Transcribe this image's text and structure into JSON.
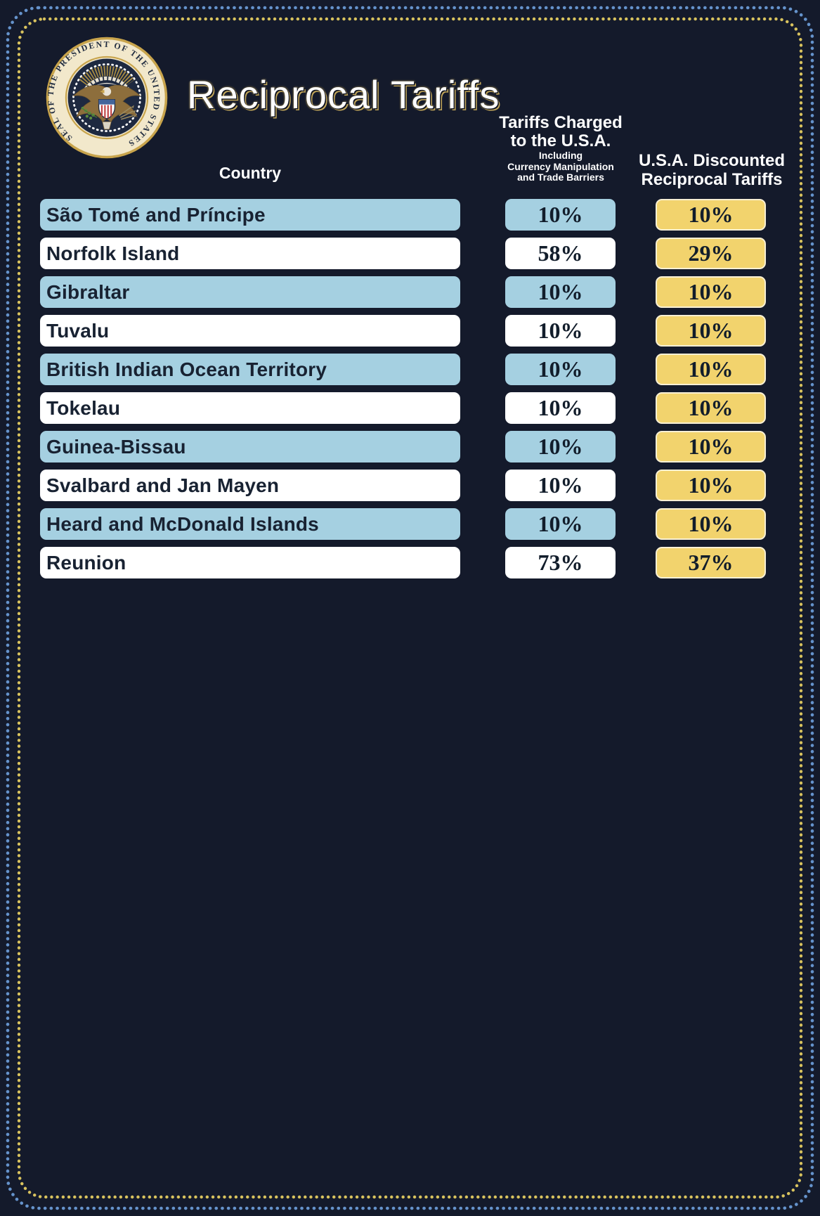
{
  "title": "Reciprocal Tariffs",
  "seal": {
    "name": "seal-of-the-president-of-the-united-states",
    "ring_text": "SEAL OF THE PRESIDENT OF THE UNITED STATES"
  },
  "columns": {
    "country_label": "Country",
    "charged_title_line1": "Tariffs Charged",
    "charged_title_line2": "to the U.S.A.",
    "charged_subtitle_line1": "Including",
    "charged_subtitle_line2": "Currency Manipulation",
    "charged_subtitle_line3": "and Trade Barriers",
    "discounted_title_line1": "U.S.A. Discounted",
    "discounted_title_line2": "Reciprocal Tariffs"
  },
  "rows": [
    {
      "country": "São Tomé and Príncipe",
      "charged": "10%",
      "discounted": "10%"
    },
    {
      "country": "Norfolk Island",
      "charged": "58%",
      "discounted": "29%"
    },
    {
      "country": "Gibraltar",
      "charged": "10%",
      "discounted": "10%"
    },
    {
      "country": "Tuvalu",
      "charged": "10%",
      "discounted": "10%"
    },
    {
      "country": "British Indian Ocean Territory",
      "charged": "10%",
      "discounted": "10%"
    },
    {
      "country": "Tokelau",
      "charged": "10%",
      "discounted": "10%"
    },
    {
      "country": "Guinea-Bissau",
      "charged": "10%",
      "discounted": "10%"
    },
    {
      "country": "Svalbard and Jan Mayen",
      "charged": "10%",
      "discounted": "10%"
    },
    {
      "country": "Heard and McDonald Islands",
      "charged": "10%",
      "discounted": "10%"
    },
    {
      "country": "Reunion",
      "charged": "73%",
      "discounted": "37%"
    }
  ],
  "colors": {
    "background_navy": "#141a2b",
    "row_blue": "#a5d0e1",
    "row_white": "#ffffff",
    "discounted_gold": "#f2d36d",
    "border_dots_outer_blue": "#6593cc",
    "border_dots_inner_gold": "#d9c35e",
    "seal_cream": "#f2e8cb",
    "seal_gold": "#c8a44c"
  },
  "chart_data": {
    "type": "table",
    "title": "Reciprocal Tariffs",
    "columns": [
      "Country",
      "Tariffs Charged to the U.S.A. (Including Currency Manipulation and Trade Barriers) %",
      "U.S.A. Discounted Reciprocal Tariffs %"
    ],
    "rows": [
      [
        "São Tomé and Príncipe",
        10,
        10
      ],
      [
        "Norfolk Island",
        58,
        29
      ],
      [
        "Gibraltar",
        10,
        10
      ],
      [
        "Tuvalu",
        10,
        10
      ],
      [
        "British Indian Ocean Territory",
        10,
        10
      ],
      [
        "Tokelau",
        10,
        10
      ],
      [
        "Guinea-Bissau",
        10,
        10
      ],
      [
        "Svalbard and Jan Mayen",
        10,
        10
      ],
      [
        "Heard and McDonald Islands",
        10,
        10
      ],
      [
        "Reunion",
        73,
        37
      ]
    ]
  }
}
